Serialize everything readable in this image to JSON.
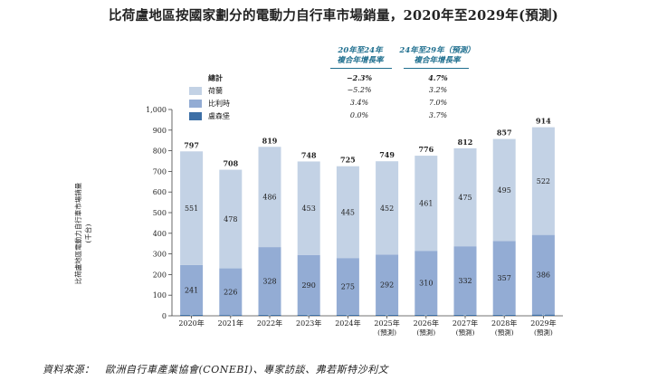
{
  "chart_data": {
    "type": "bar",
    "stacked": true,
    "title": "比荷盧地區按國家劃分的電動力自行車市場銷量，2020年至2029年(預測)",
    "ylabel": "比荷盧地區電動力自行車市場銷量",
    "ylabel_unit": "(千台)",
    "ylim": [
      0,
      1000
    ],
    "yticks": [
      "0",
      "100",
      "200",
      "300",
      "400",
      "500",
      "600",
      "700",
      "800",
      "900",
      "1,000"
    ],
    "categories": [
      {
        "year": "2020年",
        "note": ""
      },
      {
        "year": "2021年",
        "note": ""
      },
      {
        "year": "2022年",
        "note": ""
      },
      {
        "year": "2023年",
        "note": ""
      },
      {
        "year": "2024年",
        "note": ""
      },
      {
        "year": "2025年",
        "note": "(預測)"
      },
      {
        "year": "2026年",
        "note": "(預測)"
      },
      {
        "year": "2027年",
        "note": "(預測)"
      },
      {
        "year": "2028年",
        "note": "(預測)"
      },
      {
        "year": "2029年",
        "note": "(預測)"
      }
    ],
    "series": [
      {
        "name": "盧森堡",
        "color": "#3d6fa6",
        "values": [
          5,
          4,
          5,
          5,
          5,
          5,
          5,
          5,
          5,
          6
        ]
      },
      {
        "name": "比利時",
        "color": "#93acd4",
        "values": [
          241,
          226,
          328,
          290,
          275,
          292,
          310,
          332,
          357,
          386
        ]
      },
      {
        "name": "荷蘭",
        "color": "#c3d2e5",
        "values": [
          551,
          478,
          486,
          453,
          445,
          452,
          461,
          475,
          495,
          522
        ]
      }
    ],
    "totals": [
      "797",
      "708",
      "819",
      "748",
      "725",
      "749",
      "776",
      "812",
      "857",
      "914"
    ]
  },
  "cagr_table": {
    "header_1": [
      "20年至24年",
      "複合年增長率"
    ],
    "header_2": [
      "24年至29年（預測）",
      "複合年增長率"
    ],
    "rows": [
      {
        "label": "總計",
        "color": "",
        "v1": "−2.3%",
        "v2": "4.7%",
        "bold": true
      },
      {
        "label": "荷蘭",
        "color": "#c3d2e5",
        "v1": "−5.2%",
        "v2": "3.2%",
        "bold": false
      },
      {
        "label": "比利時",
        "color": "#93acd4",
        "v1": "3.4%",
        "v2": "7.0%",
        "bold": false
      },
      {
        "label": "盧森堡",
        "color": "#3d6fa6",
        "v1": "0.0%",
        "v2": "3.7%",
        "bold": false
      }
    ]
  },
  "source": "資料來源：　歐洲自行車產業協會(CONEBI)、專家訪談、弗若斯特沙利文"
}
